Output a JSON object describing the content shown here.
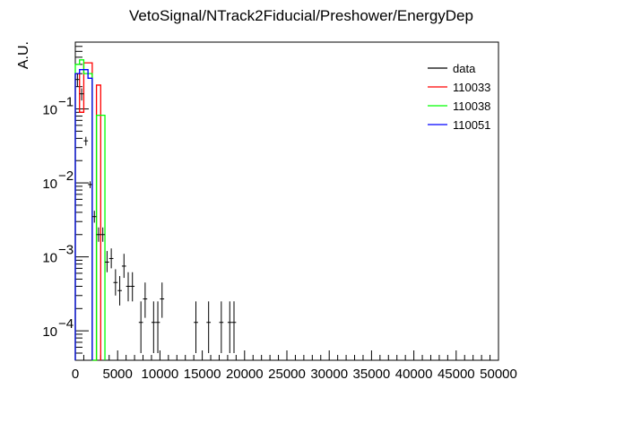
{
  "chart_data": {
    "type": "histogram",
    "title": "VetoSignal/NTrack2Fiducial/Preshower/EnergyDep",
    "xlabel": "",
    "ylabel": "A.U.",
    "x_scale": "linear",
    "y_scale": "log",
    "xlim": [
      0,
      50000
    ],
    "ylim": [
      4e-05,
      0.8
    ],
    "x_ticks": [
      0,
      5000,
      10000,
      15000,
      20000,
      25000,
      30000,
      35000,
      40000,
      45000,
      50000
    ],
    "x_tick_labels": [
      "0",
      "5000",
      "10000",
      "15000",
      "20000",
      "25000",
      "30000",
      "35000",
      "40000",
      "45000",
      "50000"
    ],
    "y_ticks": [
      0.0001,
      0.001,
      0.01,
      0.1
    ],
    "y_tick_labels": [
      {
        "base": "10",
        "exp": "−4"
      },
      {
        "base": "10",
        "exp": "−3"
      },
      {
        "base": "10",
        "exp": "−2"
      },
      {
        "base": "10",
        "exp": "−1"
      }
    ],
    "legend_position": "top-right",
    "legend": [
      {
        "label": "data",
        "color": "#000000"
      },
      {
        "label": "110033",
        "color": "#ff0000"
      },
      {
        "label": "110038",
        "color": "#00ff00"
      },
      {
        "label": "110051",
        "color": "#0000ff"
      }
    ],
    "series": [
      {
        "name": "110033",
        "color": "#ff0000",
        "kind": "step",
        "bins": [
          {
            "lo": 0,
            "hi": 500,
            "y": 0.3
          },
          {
            "lo": 500,
            "hi": 1000,
            "y": 0.09
          },
          {
            "lo": 1000,
            "hi": 1500,
            "y": 0.42
          },
          {
            "lo": 1500,
            "hi": 2000,
            "y": 0.42
          },
          {
            "lo": 2000,
            "hi": 2500,
            "y": 4e-05
          },
          {
            "lo": 2500,
            "hi": 3000,
            "y": 0.21
          }
        ]
      },
      {
        "name": "110038",
        "color": "#00ff00",
        "kind": "step",
        "bins": [
          {
            "lo": 0,
            "hi": 500,
            "y": 0.4
          },
          {
            "lo": 500,
            "hi": 1000,
            "y": 0.46
          },
          {
            "lo": 1000,
            "hi": 1500,
            "y": 0.3
          },
          {
            "lo": 1500,
            "hi": 2000,
            "y": 0.3
          },
          {
            "lo": 2000,
            "hi": 2500,
            "y": 4e-05
          },
          {
            "lo": 2500,
            "hi": 3500,
            "y": 0.082
          }
        ]
      },
      {
        "name": "110051",
        "color": "#0000ff",
        "kind": "step",
        "bins": [
          {
            "lo": 0,
            "hi": 500,
            "y": 0.3
          },
          {
            "lo": 500,
            "hi": 1000,
            "y": 0.34
          },
          {
            "lo": 1000,
            "hi": 1500,
            "y": 0.34
          },
          {
            "lo": 1500,
            "hi": 2000,
            "y": 0.26
          }
        ]
      },
      {
        "name": "data",
        "color": "#000000",
        "kind": "points",
        "points": [
          {
            "x": 250,
            "y": 0.25,
            "xerr": 250,
            "ylo": 0.2,
            "yhi": 0.3
          },
          {
            "x": 750,
            "y": 0.16,
            "xerr": 250,
            "ylo": 0.13,
            "yhi": 0.19
          },
          {
            "x": 1250,
            "y": 0.037,
            "xerr": 250,
            "ylo": 0.032,
            "yhi": 0.042
          },
          {
            "x": 1750,
            "y": 0.0095,
            "xerr": 250,
            "ylo": 0.0085,
            "yhi": 0.0105
          },
          {
            "x": 2250,
            "y": 0.0035,
            "xerr": 250,
            "ylo": 0.0029,
            "yhi": 0.0042
          },
          {
            "x": 2750,
            "y": 0.002,
            "xerr": 250,
            "ylo": 0.0016,
            "yhi": 0.0025
          },
          {
            "x": 3250,
            "y": 0.002,
            "xerr": 250,
            "ylo": 0.0016,
            "yhi": 0.0025
          },
          {
            "x": 3750,
            "y": 0.00085,
            "xerr": 250,
            "ylo": 0.00062,
            "yhi": 0.0012
          },
          {
            "x": 4250,
            "y": 0.00095,
            "xerr": 250,
            "ylo": 0.0007,
            "yhi": 0.0013
          },
          {
            "x": 4750,
            "y": 0.00045,
            "xerr": 250,
            "ylo": 0.0003,
            "yhi": 0.00068
          },
          {
            "x": 5250,
            "y": 0.00035,
            "xerr": 250,
            "ylo": 0.00022,
            "yhi": 0.00055
          },
          {
            "x": 5750,
            "y": 0.00075,
            "xerr": 250,
            "ylo": 0.00052,
            "yhi": 0.0011
          },
          {
            "x": 6250,
            "y": 0.0004,
            "xerr": 250,
            "ylo": 0.00025,
            "yhi": 0.00062
          },
          {
            "x": 6750,
            "y": 0.0004,
            "xerr": 250,
            "ylo": 0.00025,
            "yhi": 0.00062
          },
          {
            "x": 7750,
            "y": 0.00013,
            "xerr": 250,
            "ylo": 5e-05,
            "yhi": 0.00025
          },
          {
            "x": 8250,
            "y": 0.00027,
            "xerr": 250,
            "ylo": 0.00015,
            "yhi": 0.00045
          },
          {
            "x": 9250,
            "y": 0.00013,
            "xerr": 250,
            "ylo": 5e-05,
            "yhi": 0.00025
          },
          {
            "x": 9750,
            "y": 0.00013,
            "xerr": 250,
            "ylo": 5e-05,
            "yhi": 0.00025
          },
          {
            "x": 10250,
            "y": 0.00027,
            "xerr": 250,
            "ylo": 0.00015,
            "yhi": 0.00045
          },
          {
            "x": 14250,
            "y": 0.00013,
            "xerr": 250,
            "ylo": 5e-05,
            "yhi": 0.00025
          },
          {
            "x": 15750,
            "y": 0.00013,
            "xerr": 250,
            "ylo": 5e-05,
            "yhi": 0.00025
          },
          {
            "x": 17250,
            "y": 0.00013,
            "xerr": 250,
            "ylo": 5e-05,
            "yhi": 0.00025
          },
          {
            "x": 18250,
            "y": 0.00013,
            "xerr": 250,
            "ylo": 5e-05,
            "yhi": 0.00025
          },
          {
            "x": 18750,
            "y": 0.00013,
            "xerr": 250,
            "ylo": 5e-05,
            "yhi": 0.00025
          }
        ]
      }
    ]
  }
}
